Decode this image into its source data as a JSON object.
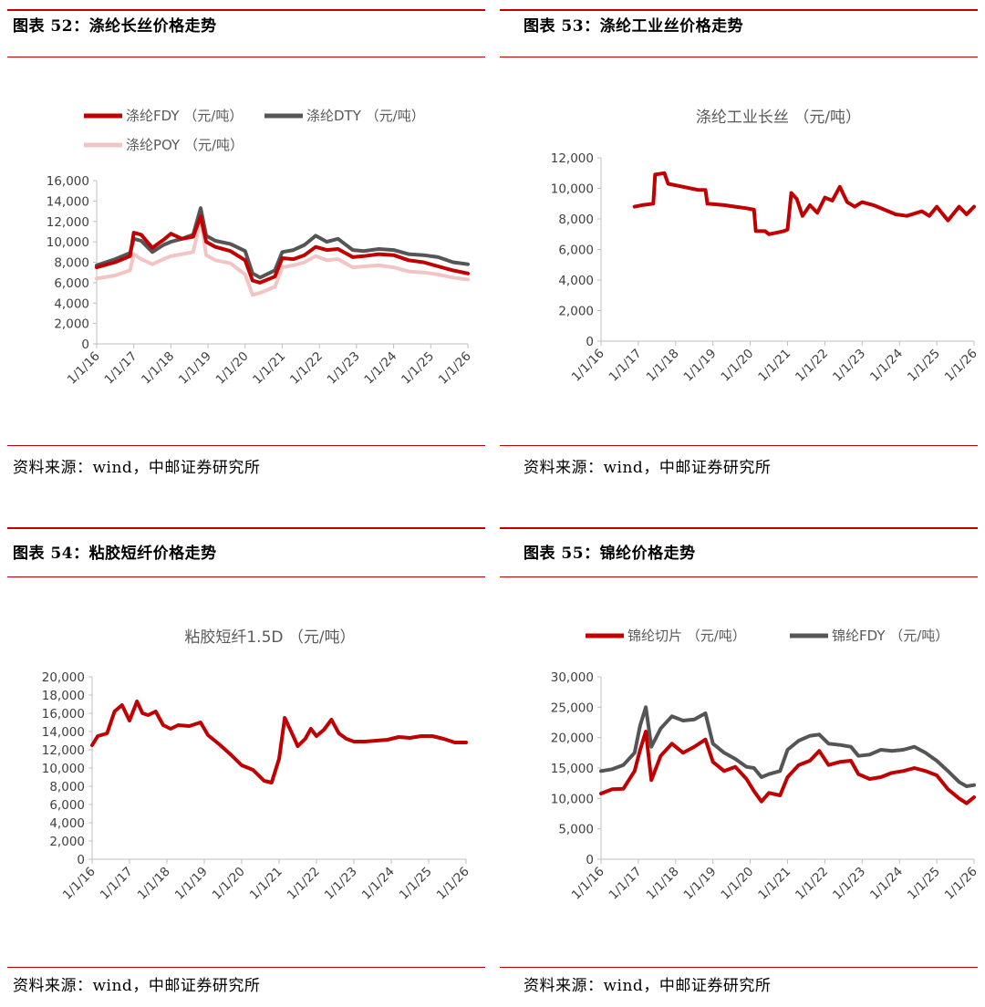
{
  "panels": [
    {
      "caption": "图表 52：涤纶长丝价格走势",
      "source": "资料来源：wind，中邮证券研究所",
      "chart_data": {
        "type": "line",
        "title": "",
        "unit_note": "",
        "xlabel": "",
        "ylabel": "",
        "x_ticks": [
          "1/1/16",
          "1/1/17",
          "1/1/18",
          "1/1/19",
          "1/1/20",
          "1/1/21",
          "1/1/22",
          "1/1/23",
          "1/1/24",
          "1/1/25",
          "1/1/26"
        ],
        "xlim": [
          2016.0,
          2026.0
        ],
        "ylim": [
          0,
          16000
        ],
        "y_ticks": [
          "0",
          "2,000",
          "4,000",
          "6,000",
          "8,000",
          "10,000",
          "12,000",
          "14,000",
          "16,000"
        ],
        "legend": "top",
        "grid": false,
        "series": [
          {
            "name": "涤纶FDY （元/吨）",
            "color": "#c00000",
            "x": [
              2016.0,
              2016.5,
              2016.9,
              2017.0,
              2017.2,
              2017.5,
              2017.8,
              2018.0,
              2018.3,
              2018.6,
              2018.8,
              2018.95,
              2019.2,
              2019.6,
              2020.0,
              2020.2,
              2020.4,
              2020.8,
              2021.0,
              2021.3,
              2021.6,
              2021.9,
              2022.2,
              2022.5,
              2022.9,
              2023.2,
              2023.6,
              2024.0,
              2024.4,
              2024.8,
              2025.2,
              2025.6,
              2026.0
            ],
            "y": [
              7500,
              8000,
              8600,
              10900,
              10700,
              9400,
              10200,
              10800,
              10300,
              10500,
              12500,
              10000,
              9500,
              9100,
              8200,
              6200,
              6000,
              6600,
              8400,
              8300,
              8700,
              9500,
              9200,
              9300,
              8500,
              8600,
              8800,
              8700,
              8200,
              8000,
              7600,
              7200,
              6900
            ]
          },
          {
            "name": "涤纶DTY （元/吨）",
            "color": "#555555",
            "x": [
              2016.0,
              2016.5,
              2016.9,
              2017.0,
              2017.2,
              2017.5,
              2017.8,
              2018.0,
              2018.3,
              2018.6,
              2018.8,
              2018.95,
              2019.2,
              2019.6,
              2020.0,
              2020.2,
              2020.4,
              2020.8,
              2021.0,
              2021.3,
              2021.6,
              2021.9,
              2022.2,
              2022.5,
              2022.9,
              2023.2,
              2023.6,
              2024.0,
              2024.4,
              2024.8,
              2025.2,
              2025.6,
              2026.0
            ],
            "y": [
              7700,
              8300,
              8900,
              10300,
              10100,
              9000,
              9700,
              10000,
              10300,
              10700,
              13300,
              10600,
              10100,
              9800,
              9100,
              6900,
              6500,
              7200,
              9000,
              9200,
              9700,
              10600,
              10000,
              10300,
              9200,
              9100,
              9300,
              9200,
              8800,
              8700,
              8500,
              8000,
              7800
            ]
          },
          {
            "name": "涤纶POY （元/吨）",
            "color": "#f2c4c4",
            "x": [
              2016.0,
              2016.5,
              2016.9,
              2017.0,
              2017.2,
              2017.5,
              2017.8,
              2018.0,
              2018.3,
              2018.6,
              2018.8,
              2018.95,
              2019.2,
              2019.6,
              2020.0,
              2020.2,
              2020.4,
              2020.8,
              2021.0,
              2021.3,
              2021.6,
              2021.9,
              2022.2,
              2022.5,
              2022.9,
              2023.2,
              2023.6,
              2024.0,
              2024.4,
              2024.8,
              2025.2,
              2025.6,
              2026.0
            ],
            "y": [
              6400,
              6700,
              7200,
              8800,
              8300,
              7800,
              8300,
              8600,
              8800,
              9000,
              12200,
              8700,
              8200,
              7900,
              6800,
              4800,
              5000,
              5600,
              7500,
              7700,
              8000,
              8600,
              8200,
              8300,
              7500,
              7600,
              7700,
              7500,
              7100,
              7000,
              6800,
              6500,
              6300
            ]
          }
        ]
      }
    },
    {
      "caption": "图表 53：涤纶工业丝价格走势",
      "source": "资料来源：wind，中邮证券研究所",
      "chart_data": {
        "type": "line",
        "title": "涤纶工业长丝 （元/吨）",
        "xlabel": "",
        "ylabel": "",
        "x_ticks": [
          "1/1/16",
          "1/1/17",
          "1/1/18",
          "1/1/19",
          "1/1/20",
          "1/1/21",
          "1/1/22",
          "1/1/23",
          "1/1/24",
          "1/1/25",
          "1/1/26"
        ],
        "xlim": [
          2016.0,
          2026.0
        ],
        "ylim": [
          0,
          12000
        ],
        "y_ticks": [
          "0",
          "2,000",
          "4,000",
          "6,000",
          "8,000",
          "10,000",
          "12,000"
        ],
        "legend": "none",
        "grid": false,
        "series": [
          {
            "name": "",
            "color": "#c00000",
            "x": [
              2016.9,
              2017.1,
              2017.4,
              2017.45,
              2017.7,
              2017.8,
              2018.2,
              2018.6,
              2018.8,
              2018.85,
              2019.3,
              2019.6,
              2019.9,
              2020.1,
              2020.15,
              2020.4,
              2020.5,
              2020.9,
              2021.0,
              2021.1,
              2021.25,
              2021.4,
              2021.6,
              2021.8,
              2022.0,
              2022.2,
              2022.4,
              2022.6,
              2022.8,
              2023.0,
              2023.3,
              2023.6,
              2023.9,
              2024.2,
              2024.6,
              2024.8,
              2025.0,
              2025.3,
              2025.6,
              2025.8,
              2026.0
            ],
            "y": [
              8800,
              8900,
              9000,
              10900,
              11000,
              10300,
              10100,
              9900,
              9900,
              9000,
              8900,
              8800,
              8700,
              8600,
              7200,
              7200,
              7000,
              7200,
              7300,
              9700,
              9300,
              8200,
              8900,
              8400,
              9400,
              9200,
              10100,
              9100,
              8800,
              9100,
              8900,
              8600,
              8300,
              8200,
              8500,
              8200,
              8800,
              7900,
              8800,
              8300,
              8800
            ]
          }
        ]
      }
    },
    {
      "caption": "图表 54：粘胶短纤价格走势",
      "source": "资料来源：wind，中邮证券研究所",
      "chart_data": {
        "type": "line",
        "title": "粘胶短纤1.5D （元/吨）",
        "xlabel": "",
        "ylabel": "",
        "x_ticks": [
          "1/1/16",
          "1/1/17",
          "1/1/18",
          "1/1/19",
          "1/1/20",
          "1/1/21",
          "1/1/22",
          "1/1/23",
          "1/1/24",
          "1/1/25",
          "1/1/26"
        ],
        "xlim": [
          2016.0,
          2026.0
        ],
        "ylim": [
          0,
          20000
        ],
        "y_ticks": [
          "0",
          "2,000",
          "4,000",
          "6,000",
          "8,000",
          "10,000",
          "12,000",
          "14,000",
          "16,000",
          "18,000",
          "20,000"
        ],
        "legend": "none",
        "grid": false,
        "series": [
          {
            "name": "",
            "color": "#c00000",
            "x": [
              2016.0,
              2016.15,
              2016.4,
              2016.6,
              2016.8,
              2017.0,
              2017.2,
              2017.35,
              2017.5,
              2017.7,
              2017.9,
              2018.1,
              2018.3,
              2018.6,
              2018.9,
              2019.1,
              2019.4,
              2019.7,
              2020.0,
              2020.3,
              2020.6,
              2020.8,
              2021.0,
              2021.15,
              2021.3,
              2021.5,
              2021.7,
              2021.85,
              2022.0,
              2022.2,
              2022.4,
              2022.6,
              2022.8,
              2023.0,
              2023.3,
              2023.6,
              2023.9,
              2024.2,
              2024.5,
              2024.8,
              2025.1,
              2025.4,
              2025.7,
              2026.0
            ],
            "y": [
              12500,
              13500,
              13800,
              16200,
              16900,
              15200,
              17300,
              16000,
              15800,
              16200,
              14700,
              14300,
              14700,
              14600,
              15000,
              13600,
              12600,
              11500,
              10300,
              9800,
              8600,
              8400,
              11000,
              15500,
              14200,
              12400,
              13200,
              14300,
              13500,
              14200,
              15300,
              13800,
              13200,
              12900,
              12900,
              13000,
              13100,
              13400,
              13300,
              13500,
              13500,
              13200,
              12800,
              12800
            ]
          }
        ]
      }
    },
    {
      "caption": "图表 55：锦纶价格走势",
      "source": "资料来源：wind，中邮证券研究所",
      "chart_data": {
        "type": "line",
        "title": "",
        "xlabel": "",
        "ylabel": "",
        "x_ticks": [
          "1/1/16",
          "1/1/17",
          "1/1/18",
          "1/1/19",
          "1/1/20",
          "1/1/21",
          "1/1/22",
          "1/1/23",
          "1/1/24",
          "1/1/25",
          "1/1/26"
        ],
        "xlim": [
          2016.0,
          2026.0
        ],
        "ylim": [
          0,
          30000
        ],
        "y_ticks": [
          "0",
          "5,000",
          "10,000",
          "15,000",
          "20,000",
          "25,000",
          "30,000"
        ],
        "legend": "top",
        "grid": false,
        "series": [
          {
            "name": "锦纶切片 （元/吨）",
            "color": "#c00000",
            "x": [
              2016.0,
              2016.3,
              2016.6,
              2016.9,
              2017.05,
              2017.2,
              2017.35,
              2017.6,
              2017.9,
              2018.2,
              2018.5,
              2018.8,
              2019.0,
              2019.3,
              2019.6,
              2019.9,
              2020.1,
              2020.3,
              2020.5,
              2020.8,
              2021.0,
              2021.3,
              2021.6,
              2021.85,
              2022.1,
              2022.4,
              2022.7,
              2022.9,
              2023.2,
              2023.5,
              2023.8,
              2024.1,
              2024.4,
              2024.7,
              2025.0,
              2025.3,
              2025.6,
              2025.8,
              2026.0
            ],
            "y": [
              10800,
              11500,
              11600,
              14500,
              18000,
              21000,
              13000,
              17000,
              19000,
              17500,
              18500,
              19700,
              16000,
              14500,
              15200,
              13200,
              11200,
              9500,
              10900,
              10500,
              13500,
              15500,
              16200,
              17800,
              15500,
              16000,
              16200,
              14000,
              13200,
              13500,
              14200,
              14500,
              15000,
              14500,
              13800,
              11500,
              10000,
              9200,
              10200
            ]
          },
          {
            "name": "锦纶FDY （元/吨）",
            "color": "#555555",
            "x": [
              2016.0,
              2016.3,
              2016.6,
              2016.9,
              2017.05,
              2017.2,
              2017.35,
              2017.6,
              2017.9,
              2018.2,
              2018.5,
              2018.8,
              2019.0,
              2019.3,
              2019.6,
              2019.9,
              2020.1,
              2020.3,
              2020.5,
              2020.8,
              2021.0,
              2021.3,
              2021.6,
              2021.85,
              2022.1,
              2022.4,
              2022.7,
              2022.9,
              2023.2,
              2023.5,
              2023.8,
              2024.1,
              2024.4,
              2024.7,
              2025.0,
              2025.3,
              2025.6,
              2025.8,
              2026.0
            ],
            "y": [
              14500,
              14800,
              15500,
              17500,
              22000,
              25000,
              18500,
              21500,
              23500,
              22800,
              23000,
              24000,
              19000,
              17500,
              16500,
              15200,
              15000,
              13500,
              14000,
              14500,
              18000,
              19500,
              20300,
              20500,
              19000,
              18800,
              18500,
              17000,
              17200,
              18000,
              17800,
              18000,
              18500,
              17500,
              16200,
              14500,
              12700,
              12000,
              12200
            ]
          }
        ]
      }
    }
  ]
}
